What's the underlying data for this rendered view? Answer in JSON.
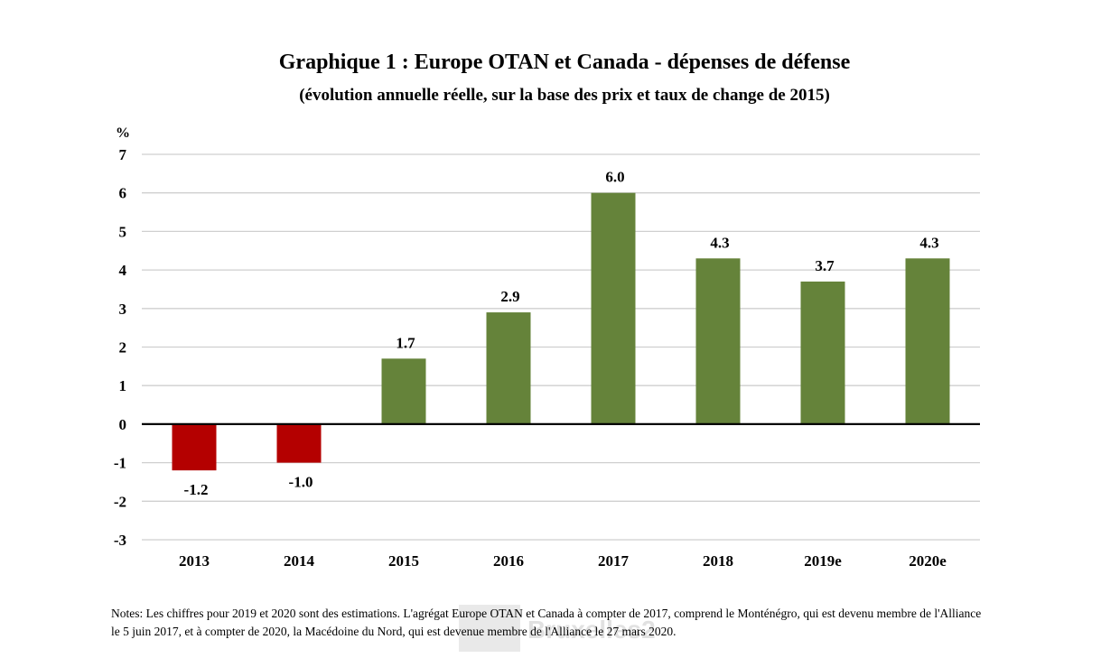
{
  "chart_data": {
    "type": "bar",
    "title": "Graphique 1 : Europe OTAN et Canada - dépenses de défense",
    "subtitle": "(évolution annuelle réelle, sur la base des prix et taux de change de 2015)",
    "ylabel": "%",
    "categories": [
      "2013",
      "2014",
      "2015",
      "2016",
      "2017",
      "2018",
      "2019e",
      "2020e"
    ],
    "values": [
      -1.2,
      -1.0,
      1.7,
      2.9,
      6.0,
      4.3,
      3.7,
      4.3
    ],
    "value_labels": [
      "-1.2",
      "-1.0",
      "1.7",
      "2.9",
      "6.0",
      "4.3",
      "3.7",
      "4.3"
    ],
    "ylim": [
      -3,
      7
    ],
    "yticks": [
      "-3",
      "-2",
      "-1",
      "0",
      "1",
      "2",
      "3",
      "4",
      "5",
      "6",
      "7"
    ],
    "grid": true,
    "colors": {
      "positive": "#65833a",
      "negative": "#b40000",
      "grid": "#cfcfcf",
      "axis": "#000000"
    }
  },
  "notes": "Notes: Les chiffres pour 2019 et 2020 sont des estimations. L'agrégat Europe OTAN et Canada à compter de 2017, comprend le Monténégro, qui est devenu membre de l'Alliance le 5 juin 2017, et à compter de 2020, la Macédoine du Nord, qui est devenue membre de l'Alliance le 27 mars 2020.",
  "watermark": {
    "text": "Bruxelles2"
  }
}
